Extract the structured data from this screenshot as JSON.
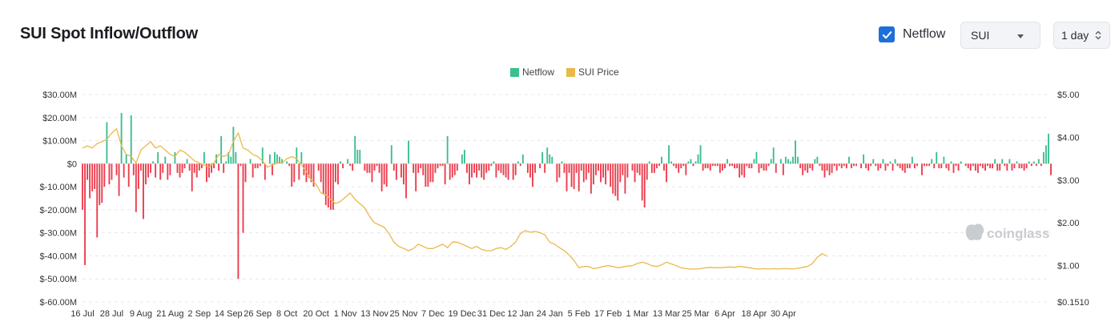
{
  "header": {
    "title": "SUI Spot Inflow/Outflow",
    "netflow_toggle": {
      "label": "Netflow",
      "checked": true
    },
    "coin_select": {
      "value": "SUI"
    },
    "period_select": {
      "value": "1 day"
    }
  },
  "watermark": "coinglass",
  "colors": {
    "positive": "#3bbf8e",
    "negative": "#ec3c4c",
    "price": "#e9b94c",
    "checkbox": "#1e6fd9"
  },
  "chart_data": {
    "type": "bar",
    "legend": [
      {
        "name": "Netflow",
        "color": "#3bbf8e"
      },
      {
        "name": "SUI Price",
        "color": "#e9b94c"
      }
    ],
    "legend_position": "top-center",
    "grid": true,
    "x_ticks": [
      "16 Jul",
      "28 Jul",
      "9 Aug",
      "21 Aug",
      "2 Sep",
      "14 Sep",
      "26 Sep",
      "8 Oct",
      "20 Oct",
      "1 Nov",
      "13 Nov",
      "25 Nov",
      "7 Dec",
      "19 Dec",
      "31 Dec",
      "12 Jan",
      "24 Jan",
      "5 Feb",
      "17 Feb",
      "1 Mar",
      "13 Mar",
      "25 Mar",
      "6 Apr",
      "18 Apr",
      "30 Apr"
    ],
    "y_left": {
      "ticks": [
        30,
        20,
        10,
        0,
        -10,
        -20,
        -30,
        -40,
        -50,
        -60
      ],
      "tick_labels": [
        "$30.00M",
        "$20.00M",
        "$10.00M",
        "$0",
        "$-10.00M",
        "$-20.00M",
        "$-30.00M",
        "$-40.00M",
        "$-50.00M",
        "$-60.00M"
      ],
      "range": [
        -60,
        30
      ]
    },
    "y_right": {
      "ticks": [
        5.0,
        4.0,
        3.0,
        2.0,
        1.0,
        0.151
      ],
      "tick_labels": [
        "$5.00",
        "$4.00",
        "$3.00",
        "$2.00",
        "$1.00",
        "$0.1510"
      ],
      "range": [
        0.151,
        5.0
      ]
    },
    "netflow_series": {
      "name": "Netflow",
      "unit": "$M",
      "values": [
        -20,
        -44,
        -7,
        -15,
        -12,
        -11,
        -32,
        -18,
        -17,
        -10,
        18,
        -9,
        -7,
        0,
        -5,
        -14,
        22,
        -6,
        4,
        -10,
        21,
        -5,
        -21,
        -11,
        -3,
        -24,
        -9,
        -6,
        -4,
        1,
        -6,
        5,
        -7,
        -4,
        3,
        -7,
        -5,
        0,
        5,
        -4,
        -6,
        -4,
        -2,
        2,
        -3,
        -12,
        -4,
        -6,
        -3,
        -2,
        5,
        -8,
        -6,
        -4,
        -2,
        4,
        -3,
        12,
        -4,
        1,
        5,
        3,
        16,
        5,
        -50,
        -1,
        -30,
        -8,
        0,
        2,
        -6,
        -2,
        -2,
        -1,
        7,
        -7,
        0,
        4,
        -5,
        5,
        4,
        3,
        2,
        0,
        1,
        -1,
        -10,
        -8,
        7,
        -7,
        5,
        -5,
        -8,
        -6,
        -8,
        -10,
        0,
        -3,
        -8,
        -13,
        -18,
        -19,
        -20,
        -20,
        -8,
        -9,
        1,
        -2,
        0,
        2,
        -1,
        -3,
        12,
        6,
        6,
        0,
        -3,
        -4,
        -4,
        -8,
        -3,
        -1,
        -4,
        -12,
        -9,
        -10,
        0,
        8,
        -3,
        -7,
        0,
        -6,
        -9,
        -15,
        10,
        0,
        -4,
        -12,
        -4,
        -2,
        -5,
        -10,
        -10,
        -8,
        -8,
        -4,
        -2,
        -1,
        -1,
        -9,
        12,
        -7,
        -6,
        -5,
        -3,
        0,
        4,
        6,
        -4,
        -9,
        -6,
        -4,
        -6,
        -3,
        -6,
        -7,
        -4,
        -3,
        -1,
        1,
        -6,
        -3,
        -4,
        -5,
        -6,
        -7,
        0,
        -7,
        -5,
        1,
        -1,
        4,
        0,
        -4,
        -6,
        -10,
        -4,
        0,
        -2,
        5,
        -4,
        7,
        4,
        3,
        0,
        -8,
        -6,
        1,
        -4,
        -12,
        -4,
        -10,
        -11,
        -4,
        -12,
        -3,
        -8,
        -7,
        -4,
        -13,
        -9,
        -5,
        -3,
        -8,
        -6,
        -9,
        -3,
        -10,
        -13,
        -14,
        -16,
        -8,
        -5,
        -13,
        -6,
        0,
        -3,
        -8,
        -4,
        -5,
        -16,
        -19,
        -7,
        1,
        -4,
        -4,
        -2,
        -1,
        3,
        -3,
        -8,
        8,
        1,
        -1,
        -2,
        -4,
        -2,
        -1,
        -5,
        1,
        2,
        -1,
        1,
        4,
        8,
        -3,
        -2,
        -2,
        -3,
        -1,
        -1,
        -1,
        -4,
        -3,
        -2,
        2,
        -1,
        -1,
        -2,
        -2,
        -6,
        -5,
        -6,
        -1,
        -2,
        -2,
        2,
        5,
        -4,
        -2,
        -3,
        -3,
        -1,
        2,
        7,
        -4,
        0,
        2,
        -5,
        3,
        2,
        1,
        3,
        10,
        3,
        -2,
        -5,
        -3,
        -4,
        -2,
        -3,
        2,
        3,
        -1,
        -3,
        -6,
        -3,
        -5,
        -4,
        -1,
        -3,
        -1,
        -2,
        -1,
        -2,
        3,
        -2,
        -1,
        -1,
        0,
        -2,
        4,
        -2,
        -3,
        -1,
        2,
        -1,
        -3,
        -2,
        2,
        -3,
        -1,
        1,
        -3,
        2,
        -1,
        -2,
        -3,
        -4,
        -2,
        -2,
        3,
        -2,
        -1,
        0,
        -5,
        -1,
        -1,
        -1,
        2,
        -2,
        5,
        -2,
        -2,
        3,
        -2,
        -3,
        1,
        -4,
        -1,
        -3,
        1,
        0,
        -1,
        -2,
        -3,
        -1,
        -3,
        -4,
        -1,
        -2,
        -3,
        -1,
        -2,
        -2,
        2,
        -3,
        -3,
        2,
        -1,
        -3,
        2,
        -3,
        -2,
        1,
        -2,
        -2,
        -3,
        -2,
        1,
        -1,
        1,
        -1,
        2,
        -1,
        5,
        8,
        13,
        -5
      ]
    },
    "price_series": {
      "name": "SUI Price",
      "unit": "$",
      "keypoints": [
        [
          0,
          3.75
        ],
        [
          2,
          3.8
        ],
        [
          4,
          3.75
        ],
        [
          6,
          3.85
        ],
        [
          8,
          3.9
        ],
        [
          10,
          3.95
        ],
        [
          12,
          4.1
        ],
        [
          14,
          4.2
        ],
        [
          16,
          3.8
        ],
        [
          18,
          3.6
        ],
        [
          20,
          3.55
        ],
        [
          22,
          3.4
        ],
        [
          24,
          3.7
        ],
        [
          26,
          3.8
        ],
        [
          28,
          3.9
        ],
        [
          30,
          3.75
        ],
        [
          32,
          3.8
        ],
        [
          34,
          3.7
        ],
        [
          36,
          3.6
        ],
        [
          38,
          3.55
        ],
        [
          40,
          3.7
        ],
        [
          42,
          3.65
        ],
        [
          44,
          3.55
        ],
        [
          46,
          3.45
        ],
        [
          48,
          3.4
        ],
        [
          50,
          3.35
        ],
        [
          52,
          3.3
        ],
        [
          54,
          3.4
        ],
        [
          56,
          3.6
        ],
        [
          58,
          3.55
        ],
        [
          60,
          3.6
        ],
        [
          62,
          3.9
        ],
        [
          64,
          4.1
        ],
        [
          66,
          3.75
        ],
        [
          68,
          3.7
        ],
        [
          70,
          3.6
        ],
        [
          72,
          3.55
        ],
        [
          74,
          3.45
        ],
        [
          76,
          3.3
        ],
        [
          78,
          3.35
        ],
        [
          80,
          3.4
        ],
        [
          82,
          3.4
        ],
        [
          84,
          3.5
        ],
        [
          86,
          3.55
        ],
        [
          88,
          3.5
        ],
        [
          90,
          3.35
        ],
        [
          92,
          3.2
        ],
        [
          94,
          3.0
        ],
        [
          96,
          2.9
        ],
        [
          98,
          2.7
        ],
        [
          100,
          2.65
        ],
        [
          102,
          2.55
        ],
        [
          104,
          2.45
        ],
        [
          106,
          2.5
        ],
        [
          108,
          2.6
        ],
        [
          110,
          2.7
        ],
        [
          112,
          2.55
        ],
        [
          114,
          2.45
        ],
        [
          116,
          2.35
        ],
        [
          118,
          2.15
        ],
        [
          120,
          2.0
        ],
        [
          122,
          1.95
        ],
        [
          124,
          1.9
        ],
        [
          126,
          1.75
        ],
        [
          128,
          1.55
        ],
        [
          130,
          1.45
        ],
        [
          132,
          1.4
        ],
        [
          134,
          1.35
        ],
        [
          136,
          1.4
        ],
        [
          138,
          1.5
        ],
        [
          140,
          1.45
        ],
        [
          142,
          1.4
        ],
        [
          144,
          1.4
        ],
        [
          146,
          1.45
        ],
        [
          148,
          1.5
        ],
        [
          150,
          1.42
        ],
        [
          152,
          1.55
        ],
        [
          154,
          1.55
        ],
        [
          156,
          1.5
        ],
        [
          158,
          1.45
        ],
        [
          160,
          1.4
        ],
        [
          162,
          1.45
        ],
        [
          164,
          1.38
        ],
        [
          166,
          1.35
        ],
        [
          168,
          1.35
        ],
        [
          170,
          1.4
        ],
        [
          172,
          1.42
        ],
        [
          174,
          1.38
        ],
        [
          176,
          1.45
        ],
        [
          178,
          1.55
        ],
        [
          180,
          1.75
        ],
        [
          182,
          1.82
        ],
        [
          184,
          1.78
        ],
        [
          186,
          1.8
        ],
        [
          188,
          1.77
        ],
        [
          190,
          1.72
        ],
        [
          192,
          1.55
        ],
        [
          194,
          1.5
        ],
        [
          196,
          1.42
        ],
        [
          198,
          1.35
        ],
        [
          200,
          1.25
        ],
        [
          202,
          1.12
        ],
        [
          204,
          0.95
        ],
        [
          206,
          0.98
        ],
        [
          208,
          0.98
        ],
        [
          210,
          0.93
        ],
        [
          212,
          0.95
        ],
        [
          214,
          0.98
        ],
        [
          216,
          1.0
        ],
        [
          218,
          0.98
        ],
        [
          220,
          0.95
        ],
        [
          222,
          0.97
        ],
        [
          224,
          0.99
        ],
        [
          226,
          1.0
        ],
        [
          228,
          1.05
        ],
        [
          230,
          1.08
        ],
        [
          232,
          1.05
        ],
        [
          234,
          1.0
        ],
        [
          236,
          0.98
        ],
        [
          238,
          1.02
        ],
        [
          240,
          1.08
        ],
        [
          242,
          1.04
        ],
        [
          244,
          1.0
        ],
        [
          246,
          0.95
        ],
        [
          248,
          0.93
        ],
        [
          250,
          0.92
        ],
        [
          252,
          0.92
        ],
        [
          254,
          0.93
        ],
        [
          256,
          0.95
        ],
        [
          258,
          0.96
        ],
        [
          260,
          0.95
        ],
        [
          262,
          0.95
        ],
        [
          264,
          0.96
        ],
        [
          266,
          0.97
        ],
        [
          268,
          0.96
        ],
        [
          270,
          0.98
        ],
        [
          272,
          0.97
        ],
        [
          274,
          0.95
        ],
        [
          276,
          0.93
        ],
        [
          278,
          0.92
        ],
        [
          280,
          0.93
        ],
        [
          282,
          0.92
        ],
        [
          284,
          0.93
        ],
        [
          286,
          0.92
        ],
        [
          288,
          0.93
        ],
        [
          290,
          0.93
        ],
        [
          292,
          0.92
        ],
        [
          294,
          0.94
        ],
        [
          296,
          0.96
        ],
        [
          298,
          0.98
        ],
        [
          300,
          1.05
        ],
        [
          302,
          1.2
        ],
        [
          304,
          1.28
        ],
        [
          306,
          1.22
        ]
      ]
    }
  }
}
